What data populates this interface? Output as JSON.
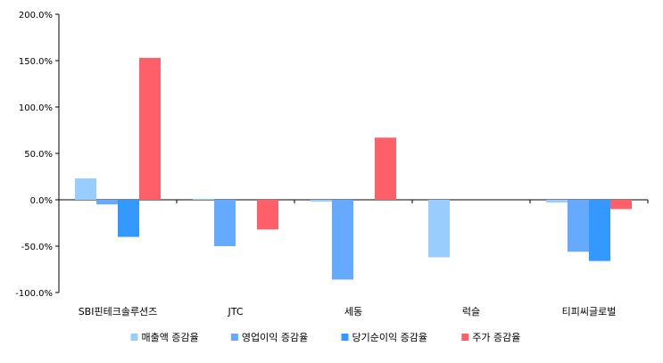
{
  "chart_data": {
    "type": "bar",
    "title": "",
    "xlabel": "",
    "ylabel": "",
    "ylim": [
      -100,
      200
    ],
    "yticks": [
      200,
      150,
      100,
      50,
      0,
      -50,
      -100
    ],
    "ytick_labels": [
      "200.0%",
      "150.0%",
      "100.0%",
      "50.0%",
      "0.0%",
      "-50.0%",
      "-100.0%"
    ],
    "grid": false,
    "legend_position": "bottom",
    "categories": [
      "SBI핀테크솔루션즈",
      "JTC",
      "세동",
      "럭슬",
      "티피씨글로벌"
    ],
    "series": [
      {
        "name": "매출액 증감율",
        "color": "#99ccff",
        "values": [
          23,
          1,
          -2,
          -62,
          -3
        ]
      },
      {
        "name": "영업이익 증감율",
        "color": "#66aaff",
        "values": [
          -5,
          -50,
          -86,
          0,
          -56
        ]
      },
      {
        "name": "당기순이익 증감율",
        "color": "#3399ff",
        "values": [
          -40,
          0,
          0,
          0,
          -66
        ]
      },
      {
        "name": "주가 증감율",
        "color": "#ff5f69",
        "values": [
          153,
          -32,
          67,
          0,
          -10
        ]
      }
    ]
  }
}
